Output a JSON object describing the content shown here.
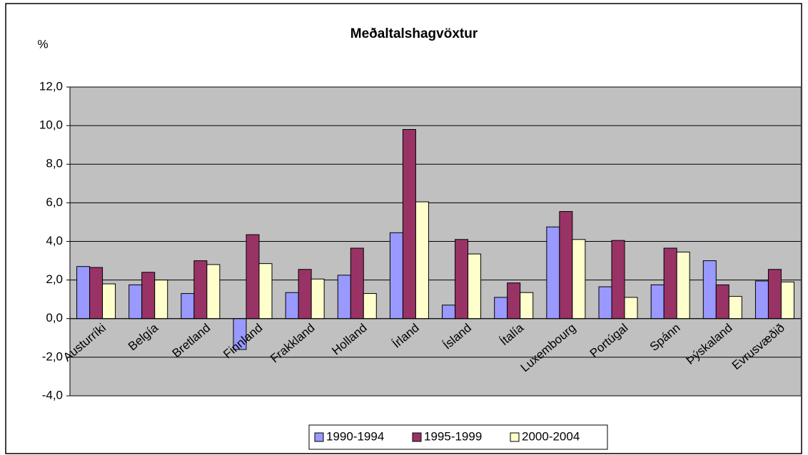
{
  "chart_data": {
    "type": "bar",
    "title": "Meðaltalshagvöxtur",
    "y_label": "%",
    "categories": [
      "Austurríki",
      "Belgía",
      "Bretland",
      "Finnland",
      "Frakkland",
      "Holland",
      "Írland",
      "Ísland",
      "Ítalía",
      "Luxembourg",
      "Portúgal",
      "Spánn",
      "Þýskaland",
      "Evrusvæðið"
    ],
    "series": [
      {
        "name": "1990-1994",
        "color": "#9999ff",
        "values": [
          2.7,
          1.75,
          1.3,
          -1.6,
          1.35,
          2.25,
          4.45,
          0.7,
          1.1,
          4.75,
          1.65,
          1.75,
          3.0,
          1.95
        ]
      },
      {
        "name": "1995-1999",
        "color": "#993366",
        "values": [
          2.65,
          2.4,
          3.0,
          4.35,
          2.55,
          3.65,
          9.8,
          4.1,
          1.85,
          5.55,
          4.05,
          3.65,
          1.75,
          2.55
        ]
      },
      {
        "name": "2000-2004",
        "color": "#ffffcc",
        "values": [
          1.8,
          2.0,
          2.8,
          2.85,
          2.05,
          1.3,
          6.05,
          3.35,
          1.35,
          4.1,
          1.1,
          3.45,
          1.15,
          1.9
        ]
      }
    ],
    "ylim": [
      -4,
      12
    ],
    "yticks": [
      {
        "value": -4,
        "label": "-4,0"
      },
      {
        "value": -2,
        "label": "-2,0"
      },
      {
        "value": 0,
        "label": "0,0"
      },
      {
        "value": 2,
        "label": "2,0"
      },
      {
        "value": 4,
        "label": "4,0"
      },
      {
        "value": 6,
        "label": "6,0"
      },
      {
        "value": 8,
        "label": "8,0"
      },
      {
        "value": 10,
        "label": "10,0"
      },
      {
        "value": 12,
        "label": "12,0"
      }
    ],
    "grid": true,
    "legend": "bottom"
  }
}
